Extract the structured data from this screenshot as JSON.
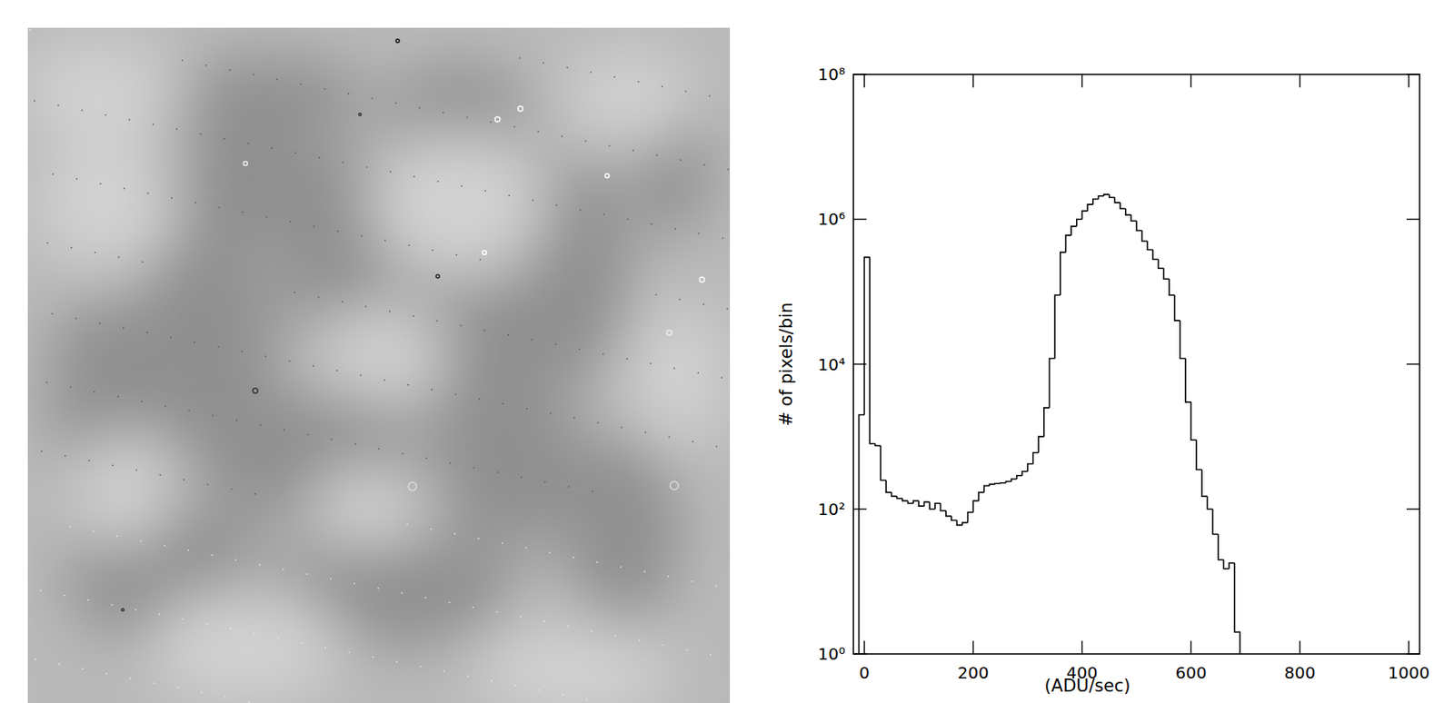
{
  "chart_data": {
    "type": "histogram",
    "xlabel": "(ADU/sec)",
    "ylabel": "# of pixels/bin",
    "log": "y",
    "color": "#000000",
    "grid": false,
    "xlim": [
      -20,
      1020
    ],
    "ylim": [
      1,
      100000000
    ],
    "xticks": [
      0,
      200,
      400,
      600,
      800,
      1000
    ],
    "yticks": [
      {
        "value": 1,
        "label": "10⁰"
      },
      {
        "value": 100,
        "label": "10²"
      },
      {
        "value": 10000,
        "label": "10⁴"
      },
      {
        "value": 1000000,
        "label": "10⁶"
      },
      {
        "value": 100000000,
        "label": "10⁸"
      }
    ],
    "bins": [
      -10,
      0,
      10,
      20,
      30,
      40,
      50,
      60,
      70,
      80,
      90,
      100,
      110,
      120,
      130,
      140,
      150,
      160,
      170,
      180,
      190,
      200,
      210,
      220,
      230,
      240,
      250,
      260,
      270,
      280,
      290,
      300,
      310,
      320,
      330,
      340,
      350,
      360,
      370,
      380,
      390,
      400,
      410,
      420,
      430,
      440,
      450,
      460,
      470,
      480,
      490,
      500,
      510,
      520,
      530,
      540,
      550,
      560,
      570,
      580,
      590,
      600,
      610,
      620,
      630,
      640,
      650,
      660,
      670,
      680,
      690
    ],
    "counts": [
      2000,
      300000,
      800,
      750,
      250,
      170,
      150,
      140,
      130,
      120,
      130,
      110,
      125,
      100,
      120,
      95,
      80,
      70,
      60,
      65,
      90,
      130,
      170,
      210,
      220,
      225,
      230,
      240,
      260,
      290,
      330,
      420,
      600,
      1000,
      2500,
      12000,
      90000,
      350000,
      600000,
      800000,
      1000000,
      1300000,
      1600000,
      1900000,
      2100000,
      2200000,
      2000000,
      1700000,
      1400000,
      1150000,
      950000,
      700000,
      500000,
      380000,
      280000,
      210000,
      150000,
      90000,
      40000,
      12000,
      3000,
      900,
      350,
      150,
      100,
      45,
      20,
      15,
      18,
      2
    ]
  }
}
